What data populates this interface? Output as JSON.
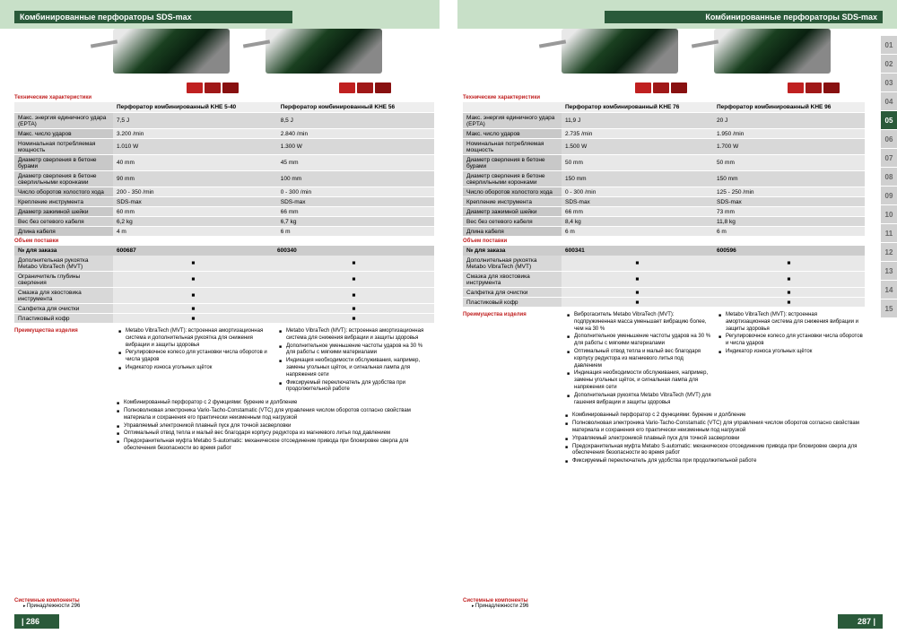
{
  "header": "Комбинированные перфораторы SDS-max",
  "pg_left": "| 286",
  "pg_right": "287 |",
  "sect": {
    "tech": "Технические характеристики",
    "scope": "Объем поставки",
    "order": "№ для заказа",
    "adv": "Преимущества изделия",
    "sys": "Системные компоненты",
    "acc": "Принадлежности",
    "accpg": "296"
  },
  "tabs": [
    "01",
    "02",
    "03",
    "04",
    "05",
    "06",
    "07",
    "08",
    "09",
    "10",
    "11",
    "12",
    "13",
    "14",
    "15"
  ],
  "active_tab": 4,
  "left": {
    "models": [
      "Перфоратор комбинированный KHE 5-40",
      "Перфоратор комбинированный KHE 56"
    ],
    "orders": [
      "600687",
      "600340"
    ],
    "spec_rows": [
      [
        "Макс. энергия единичного удара (EPTA)",
        "7,5 J",
        "8,5 J"
      ],
      [
        "Макс. число ударов",
        "3.200 /min",
        "2.840 /min"
      ],
      [
        "Номинальная потребляемая мощность",
        "1.010 W",
        "1.300 W"
      ],
      [
        "Диаметр сверления в бетоне бурами",
        "40 mm",
        "45 mm"
      ],
      [
        "Диаметр сверления в бетоне сверлильными коронками",
        "90 mm",
        "100 mm"
      ],
      [
        "Число оборотов холостого хода",
        "200 - 350 /min",
        "0 - 300 /min"
      ],
      [
        "Крепление инструмента",
        "SDS-max",
        "SDS-max"
      ],
      [
        "Диаметр зажимной шейки",
        "60 mm",
        "66 mm"
      ],
      [
        "Вес без сетевого кабеля",
        "6,2 kg",
        "6,7 kg"
      ],
      [
        "Длина кабеля",
        "4 m",
        "6 m"
      ]
    ],
    "scope_rows": [
      "Дополнительная рукоятка Metabo VibraTech (MVT)",
      "Ограничитель глубины сверления",
      "Смазка для хвостовика инструмента",
      "Салфетка для очистки",
      "Пластиковый кофр"
    ],
    "feat1": [
      "Metabo VibraTech (MVT): встроенная амортизационная система и дополнительная рукоятка для снижения вибрации и защиты здоровья",
      "Регулировочное колесо для установки числа оборотов и числа ударов",
      "Индикатор износа угольных щёток"
    ],
    "feat2": [
      "Metabo VibraTech (MVT): встроенная амортизационная система для снижения вибрации и защиты здоровья",
      "Дополнительное уменьшение частоты ударов на 30 % для работы с мягкими материалами",
      "Индикация необходимости обслуживания, например, замены угольных щёток, и сигнальная лампа для напряжения сети",
      "Фиксируемый переключатель для удобства при продолжительной работе"
    ],
    "shared": [
      "Комбинированный перфоратор с 2 функциями: бурение и долбление",
      "Полноволновая электроника Vario-Tacho-Constamatic (VTC) для управления числом оборотов согласно свойствам материала и сохранения его практически неизменным под нагрузкой",
      "Управляемый электроникой плавный пуск для точной засверловки",
      "Оптимальный отвод тепла и малый вес благодаря корпусу редуктора из магниевого литья под давлением",
      "Предохранительная муфта Metabo S-automatic: механическое отсоединение привода при блокировке сверла для обеспечения безопасности во время работ"
    ]
  },
  "right": {
    "models": [
      "Перфоратор комбинированный KHE 76",
      "Перфоратор комбинированный KHE 96"
    ],
    "orders": [
      "600341",
      "600596"
    ],
    "spec_rows": [
      [
        "Макс. энергия единичного удара (EPTA)",
        "11,9 J",
        "20 J"
      ],
      [
        "Макс. число ударов",
        "2.735 /min",
        "1.950 /min"
      ],
      [
        "Номинальная потребляемая мощность",
        "1.500 W",
        "1.700 W"
      ],
      [
        "Диаметр сверления в бетоне бурами",
        "50 mm",
        "50 mm"
      ],
      [
        "Диаметр сверления в бетоне сверлильными коронками",
        "150 mm",
        "150 mm"
      ],
      [
        "Число оборотов холостого хода",
        "0 - 300 /min",
        "125 - 250 /min"
      ],
      [
        "Крепление инструмента",
        "SDS-max",
        "SDS-max"
      ],
      [
        "Диаметр зажимной шейки",
        "66 mm",
        "73 mm"
      ],
      [
        "Вес без сетевого кабеля",
        "8,4 kg",
        "11,8 kg"
      ],
      [
        "Длина кабеля",
        "6 m",
        "6 m"
      ]
    ],
    "scope_rows": [
      "Дополнительная рукоятка Metabo VibraTech (MVT)",
      "Смазка для хвостовика инструмента",
      "Салфетка для очистки",
      "Пластиковый кофр"
    ],
    "feat1": [
      "Виброгаситель Metabo VibraTech (MVT): подпружиненная масса уменьшает вибрацию более, чем на 30 %",
      "Дополнительное уменьшение частоты ударов на 30 % для работы с мягкими материалами",
      "Оптимальный отвод тепла и малый вес благодаря корпусу редуктора из магниевого литья под давлением",
      "Индикация необходимости обслуживания, например, замены угольных щёток, и сигнальная лампа для напряжения сети",
      "Дополнительная рукоятка Metabo VibraTech (MVT) для гашения вибрации и защиты здоровья"
    ],
    "feat2": [
      "Metabo VibraTech (MVT): встроенная амортизационная система для снижения вибрации и защиты здоровья",
      "Регулировочное колесо для установки числа оборотов и числа ударов",
      "Индикатор износа угольных щёток"
    ],
    "shared": [
      "Комбинированный перфоратор с 2 функциями: бурение и долбление",
      "Полноволновая электроника Vario-Tacho-Constamatic (VTC) для управления числом оборотов согласно свойствам материала и сохранения его практически неизменным под нагрузкой",
      "Управляемый электроникой плавный пуск для точной засверловки",
      "Предохранительная муфта Metabo S-automatic: механическое отсоединение привода при блокировке сверла для обеспечения безопасности во время работ",
      "Фиксируемый переключатель для удобства при продолжительной работе"
    ]
  }
}
